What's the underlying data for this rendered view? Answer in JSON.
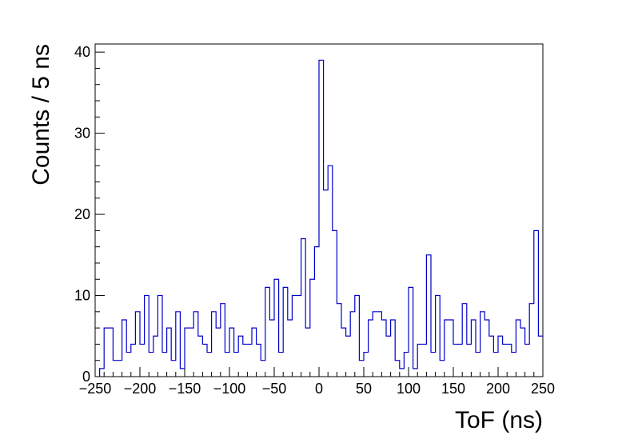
{
  "chart_data": {
    "type": "histogram",
    "title": "",
    "xlabel": "ToF (ns)",
    "ylabel": "Counts / 5 ns",
    "xlim": [
      -250,
      250
    ],
    "ylim": [
      0,
      41
    ],
    "bin_width": 5,
    "bin_start": -245,
    "xticks": [
      -250,
      -200,
      -150,
      -100,
      -50,
      0,
      50,
      100,
      150,
      200,
      250
    ],
    "xtick_labels": [
      "−250",
      "−200",
      "−150",
      "−100",
      "−50",
      "0",
      "50",
      "100",
      "150",
      "200",
      "250"
    ],
    "yticks": [
      0,
      10,
      20,
      30,
      40
    ],
    "ytick_labels": [
      "0",
      "10",
      "20",
      "30",
      "40"
    ],
    "line_color": "#0000cc",
    "legend": "none",
    "grid": false,
    "counts": [
      1,
      6,
      6,
      2,
      2,
      7,
      3,
      4,
      8,
      4,
      10,
      3,
      5,
      10,
      3,
      6,
      2,
      8,
      1,
      6,
      6,
      8,
      5,
      4,
      3,
      8,
      6,
      9,
      3,
      6,
      3,
      5,
      4,
      4,
      6,
      4,
      2,
      11,
      7,
      12,
      3,
      11,
      7,
      10,
      10,
      17,
      6,
      12,
      16,
      39,
      23,
      26,
      18,
      9,
      6,
      5,
      8,
      10,
      2,
      3,
      7,
      8,
      8,
      7,
      5,
      7,
      2,
      1,
      3,
      11,
      1,
      4,
      4,
      15,
      3,
      10,
      2,
      7,
      7,
      4,
      4,
      9,
      4,
      7,
      3,
      8,
      7,
      5,
      3,
      5,
      4,
      4,
      3,
      7,
      6,
      4,
      9,
      18,
      5
    ]
  }
}
